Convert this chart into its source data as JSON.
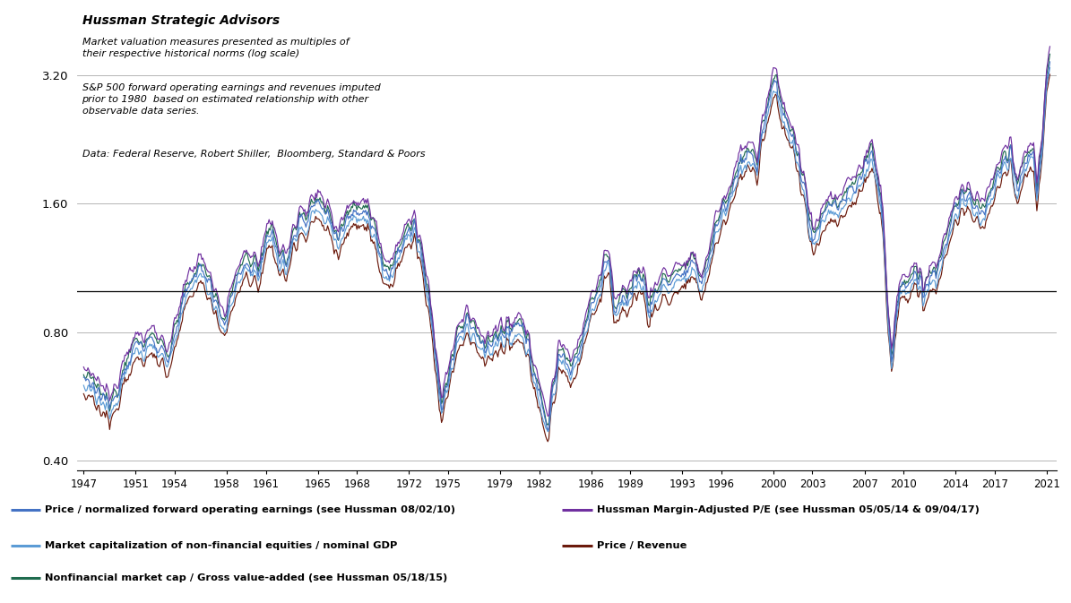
{
  "title": "Hussman Strategic Advisors",
  "subtitle1": "Market valuation measures presented as multiples of\ntheir respective historical norms (log scale)",
  "subtitle2": "S&P 500 forward operating earnings and revenues imputed\nprior to 1980  based on estimated relationship with other\nobservable data series.",
  "subtitle3": "Data: Federal Reserve, Robert Shiller,  Bloomberg, Standard & Poors",
  "yticks": [
    0.4,
    0.8,
    1.6,
    3.2
  ],
  "ytick_labels": [
    "0.40",
    "0.80",
    "1.60",
    "3.20"
  ],
  "hline_y": 1.0,
  "xticks": [
    1947,
    1951,
    1954,
    1958,
    1961,
    1965,
    1968,
    1972,
    1975,
    1979,
    1982,
    1986,
    1989,
    1993,
    1996,
    2000,
    2003,
    2007,
    2010,
    2014,
    2017,
    2021
  ],
  "xlim": [
    1946.5,
    2021.8
  ],
  "ylim_log": [
    0.38,
    4.5
  ],
  "colors": {
    "price_norm_fwd": "#4472C4",
    "hussman_map": "#7030A0",
    "mktcap_gdp": "#5B9BD5",
    "price_rev": "#6B1A0C",
    "nonfin_gva": "#1F6B4E"
  },
  "legend": [
    {
      "label": "Price / normalized forward operating earnings (see Hussman 08/02/10)",
      "color": "#4472C4"
    },
    {
      "label": "Hussman Margin-Adjusted P/E (see Hussman 05/05/14 & 09/04/17)",
      "color": "#7030A0"
    },
    {
      "label": "Market capitalization of non-financial equities / nominal GDP",
      "color": "#5B9BD5"
    },
    {
      "label": "Price / Revenue",
      "color": "#6B1A0C"
    },
    {
      "label": "Nonfinancial market cap / Gross value-added (see Hussman 05/18/15)",
      "color": "#1F6B4E"
    }
  ],
  "background_color": "#FFFFFF",
  "grid_color": "#AAAAAA"
}
